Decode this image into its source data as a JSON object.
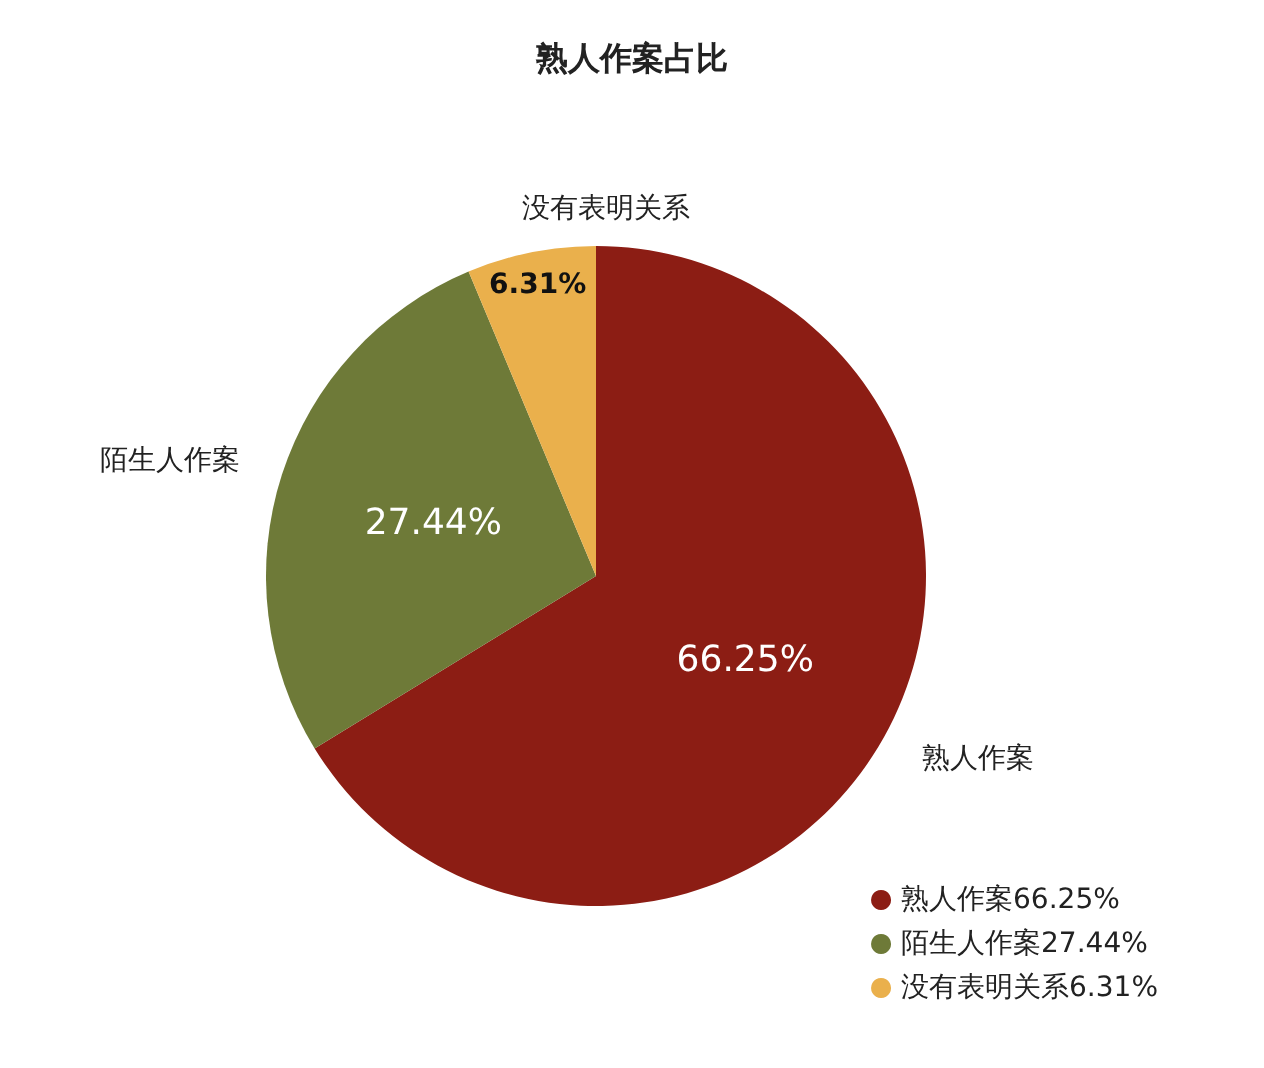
{
  "chart_data": {
    "type": "pie",
    "title": "熟人作案占比",
    "categories": [
      "熟人作案",
      "陌生人作案",
      "没有表明关系"
    ],
    "values": [
      66.25,
      27.44,
      6.31
    ],
    "colors": [
      "#8c1d14",
      "#6e7a38",
      "#eab04c"
    ],
    "value_labels": [
      "66.25%",
      "27.44%",
      "6.31%"
    ],
    "legend": "bottom right"
  }
}
